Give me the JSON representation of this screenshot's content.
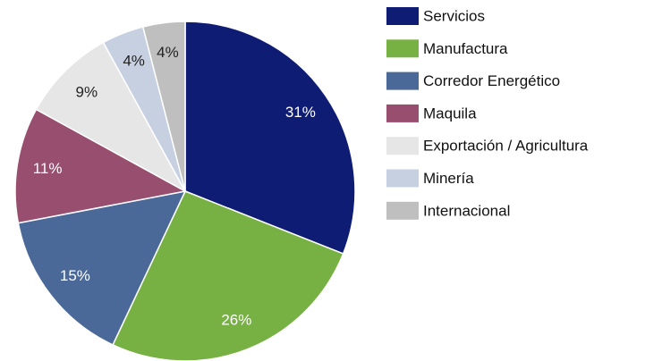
{
  "chart_data": {
    "type": "pie",
    "categories": [
      "Servicios",
      "Manufactura",
      "Corredor Energético",
      "Maquila",
      "Exportación / Agricultura",
      "Minería",
      "Internacional"
    ],
    "values": [
      31,
      26,
      15,
      11,
      9,
      4,
      4
    ],
    "value_labels": [
      "31%",
      "26%",
      "15%",
      "11%",
      "9%",
      "4%",
      "4%"
    ],
    "colors": [
      "#0f1c74",
      "#77b043",
      "#4a6898",
      "#984f6f",
      "#e6e6e6",
      "#c6d0e1",
      "#bfbfbf"
    ],
    "legend": "right"
  }
}
